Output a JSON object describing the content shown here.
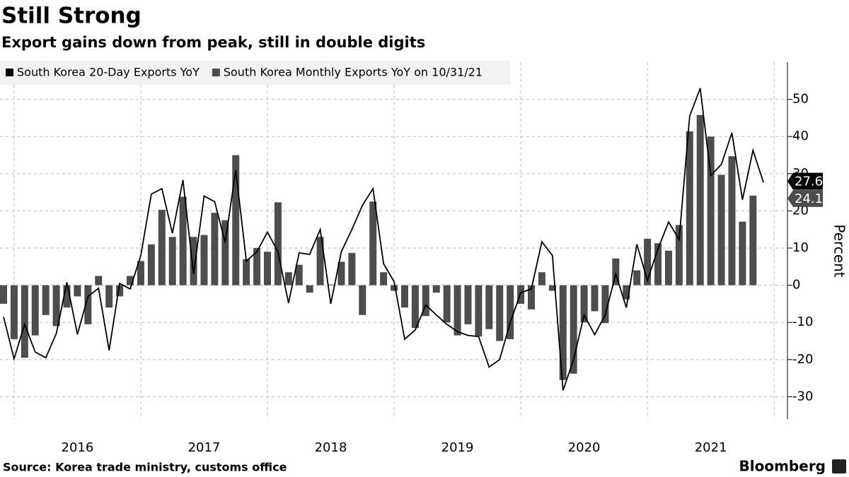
{
  "chart_data": {
    "type": "bar_line",
    "title": "Still Strong",
    "subtitle": "Export gains down from peak, still in double digits",
    "source": "Source: Korea trade ministry, customs office",
    "brand": "Bloomberg",
    "y_label": "Percent",
    "categories": [
      null,
      null,
      null,
      null,
      null,
      null,
      null,
      null,
      null,
      null,
      null,
      null,
      null,
      null,
      null,
      null,
      null,
      null,
      null,
      null,
      null,
      null,
      null,
      null,
      null,
      null,
      null,
      null,
      null,
      null,
      null,
      null,
      null,
      null,
      null,
      null,
      null,
      null,
      null,
      null,
      null,
      null,
      null,
      null,
      null,
      null,
      null,
      null,
      null,
      null,
      null,
      null,
      null,
      null,
      null,
      null,
      null,
      null,
      null,
      null,
      null,
      null,
      null,
      null,
      null,
      null,
      null,
      null,
      null,
      null,
      null,
      null,
      null
    ],
    "xticks": [
      {
        "value": 7,
        "label": "2016"
      },
      {
        "value": 19,
        "label": "2017"
      },
      {
        "value": 31,
        "label": "2018"
      },
      {
        "value": 43,
        "label": "2019"
      },
      {
        "value": 55,
        "label": "2020"
      },
      {
        "value": 67,
        "label": "2021"
      }
    ],
    "xgrid": [
      1,
      13,
      25,
      37,
      49,
      61,
      73
    ],
    "ylim": [
      -36,
      60
    ],
    "yticks": [
      -30,
      -20,
      -10,
      0,
      10,
      20,
      30,
      40,
      50
    ],
    "grid": true,
    "series": [
      {
        "name": "South Korea 20-Day Exports YoY",
        "type": "line",
        "color": "#000000",
        "values": [
          -8.5,
          -19.8,
          -10.5,
          -18,
          -19.5,
          -13,
          0.8,
          -13.2,
          -3,
          -0.8,
          -17.5,
          0.5,
          -1,
          8,
          24.5,
          26,
          14,
          28.3,
          3,
          24,
          22.5,
          11.5,
          31,
          6.5,
          9,
          14.3,
          9,
          -4.8,
          8.7,
          8.3,
          15,
          -5,
          9,
          15,
          21.5,
          26,
          5.8,
          1,
          -14.5,
          -12,
          -5.3,
          -8,
          -10.5,
          -12.5,
          -13.5,
          -13.8,
          -22,
          -20,
          -10,
          -2,
          -1,
          11.7,
          8,
          -28.3,
          -20,
          -8,
          -13.3,
          -8,
          3,
          -6,
          11,
          1.3,
          9.8,
          17,
          12.3,
          45.5,
          53,
          29.5,
          32.5,
          41,
          23,
          36.3,
          27.6
        ]
      },
      {
        "name": "South Korea Monthly Exports YoY on 10/31/21",
        "type": "bar",
        "color": "#4d4d4d",
        "values": [
          -5,
          -14.5,
          -19.5,
          -13.5,
          -8,
          -11,
          -6,
          -3,
          -10.5,
          2.5,
          -6,
          -3,
          2.5,
          6.5,
          11,
          20.3,
          13,
          23.8,
          13,
          13.5,
          19.5,
          17.5,
          35,
          7,
          10,
          9,
          22.3,
          3.5,
          5.5,
          -2,
          13,
          0.2,
          6.3,
          8.7,
          -8,
          22.5,
          3.5,
          -1.5,
          -6,
          -11.5,
          -8.3,
          -2,
          -10,
          -13.5,
          -10.5,
          -13.8,
          -11.8,
          -15,
          -14.5,
          -5,
          -6.5,
          3.5,
          -1.5,
          -25.5,
          -23.8,
          -10,
          -7,
          -10.2,
          7.2,
          -3.8,
          4,
          12.5,
          11.3,
          9.3,
          16.2,
          41.4,
          45.8,
          40,
          29.7,
          34.7,
          17.1,
          24.1,
          null
        ]
      }
    ]
  }
}
